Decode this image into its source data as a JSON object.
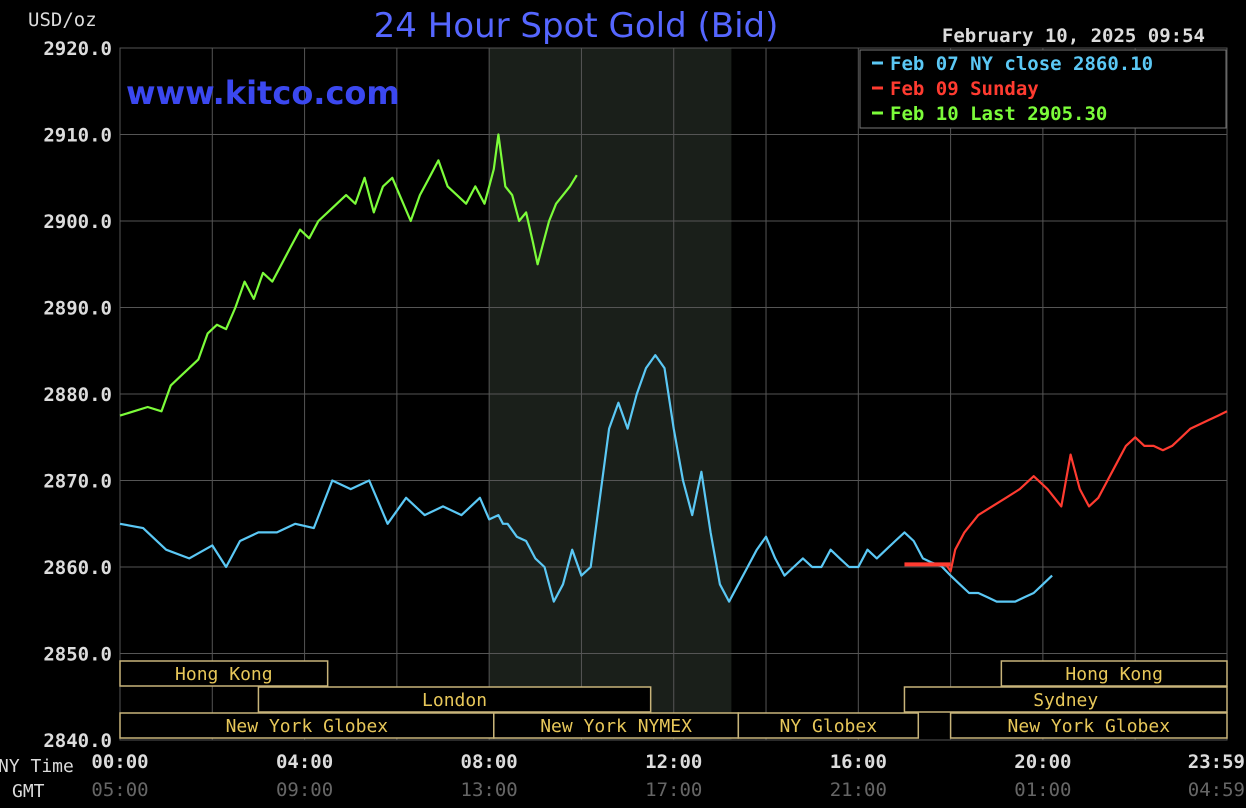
{
  "chart_data": {
    "type": "line",
    "title": "24 Hour Spot Gold (Bid)",
    "watermark": "www.kitco.com",
    "timestamp": "February 10, 2025 09:54",
    "unit_label": "USD/oz",
    "ylim": [
      2840,
      2920
    ],
    "y_ticks": [
      "2920.0",
      "2910.0",
      "2900.0",
      "2890.0",
      "2880.0",
      "2870.0",
      "2860.0",
      "2850.0",
      "2840.0"
    ],
    "x_ticks_ny": [
      "00:00",
      "04:00",
      "08:00",
      "12:00",
      "16:00",
      "20:00",
      "23:59"
    ],
    "x_ticks_gmt": [
      "05:00",
      "09:00",
      "13:00",
      "17:00",
      "21:00",
      "01:00",
      "04:59"
    ],
    "x_row_labels": {
      "ny": "NY Time",
      "gmt": "GMT"
    },
    "grid": true,
    "legend_position": "top-right",
    "series": [
      {
        "name": "Feb 07 NY close 2860.10",
        "color": "#5bc8f5",
        "x": [
          0.0,
          0.5,
          1.0,
          1.5,
          2.0,
          2.3,
          2.6,
          3.0,
          3.4,
          3.8,
          4.2,
          4.6,
          5.0,
          5.4,
          5.8,
          6.2,
          6.6,
          7.0,
          7.4,
          7.8,
          8.0,
          8.2,
          8.3,
          8.4,
          8.6,
          8.8,
          9.0,
          9.2,
          9.4,
          9.6,
          9.8,
          10.0,
          10.2,
          10.4,
          10.6,
          10.8,
          11.0,
          11.2,
          11.4,
          11.6,
          11.8,
          12.0,
          12.2,
          12.4,
          12.6,
          12.8,
          13.0,
          13.2,
          13.4,
          13.6,
          13.8,
          14.0,
          14.2,
          14.4,
          14.6,
          14.8,
          15.0,
          15.2,
          15.4,
          15.6,
          15.8,
          16.0,
          16.2,
          16.4,
          16.6,
          16.8,
          17.0,
          17.2,
          17.4,
          17.6,
          17.8,
          18.0,
          18.2,
          18.4,
          18.6,
          18.8,
          19.0,
          19.2,
          19.4,
          19.6,
          19.8,
          20.0,
          20.2
        ],
        "y": [
          2865,
          2864.5,
          2862,
          2861,
          2862.5,
          2860,
          2863,
          2864,
          2864,
          2865,
          2864.5,
          2870,
          2869,
          2870,
          2865,
          2868,
          2866,
          2867,
          2866,
          2868,
          2865.5,
          2866,
          2865,
          2865,
          2863.5,
          2863,
          2861,
          2860,
          2856,
          2858,
          2862,
          2859,
          2860,
          2868,
          2876,
          2879,
          2876,
          2880,
          2883,
          2884.5,
          2883,
          2876,
          2870,
          2866,
          2871,
          2864,
          2858,
          2856,
          2858,
          2860,
          2862,
          2863.5,
          2861,
          2859,
          2860,
          2861,
          2860,
          2860,
          2862,
          2861,
          2860,
          2860,
          2862,
          2861,
          2862,
          2863,
          2864,
          2863,
          2861,
          2860.5,
          2860.1,
          2859,
          2858,
          2857,
          2857,
          2856.5,
          2856,
          2856,
          2856,
          2856.5,
          2857,
          2858,
          2859
        ]
      },
      {
        "name": "Feb 09 Sunday",
        "color": "#ff3b30",
        "x": [
          17.0,
          17.3,
          17.6,
          17.9,
          18.0,
          18.1,
          18.3,
          18.6,
          18.9,
          19.2,
          19.5,
          19.8,
          20.1,
          20.4,
          20.6,
          20.8,
          21.0,
          21.2,
          21.4,
          21.6,
          21.8,
          22.0,
          22.2,
          22.4,
          22.6,
          22.8,
          23.0,
          23.2,
          23.4,
          23.6,
          23.8,
          23.99
        ],
        "y": [
          2860.3,
          2860.3,
          2860.3,
          2860.3,
          2859.5,
          2862,
          2864,
          2866,
          2867,
          2868,
          2869,
          2870.5,
          2869,
          2867,
          2873,
          2869,
          2867,
          2868,
          2870,
          2872,
          2874,
          2875,
          2874,
          2874,
          2873.5,
          2874,
          2875,
          2876,
          2876.5,
          2877,
          2877.5,
          2878
        ]
      },
      {
        "name": "Feb 10 Last 2905.30",
        "color": "#7cfc3a",
        "x": [
          0.0,
          0.3,
          0.6,
          0.9,
          1.1,
          1.3,
          1.5,
          1.7,
          1.9,
          2.1,
          2.3,
          2.5,
          2.7,
          2.9,
          3.1,
          3.3,
          3.5,
          3.7,
          3.9,
          4.1,
          4.3,
          4.5,
          4.7,
          4.9,
          5.1,
          5.3,
          5.5,
          5.7,
          5.9,
          6.1,
          6.3,
          6.5,
          6.7,
          6.9,
          7.1,
          7.3,
          7.5,
          7.7,
          7.9,
          8.0,
          8.1,
          8.2,
          8.35,
          8.5,
          8.65,
          8.8,
          8.95,
          9.05,
          9.15,
          9.3,
          9.45,
          9.6,
          9.75,
          9.9
        ],
        "y": [
          2877.5,
          2878,
          2878.5,
          2878,
          2881,
          2882,
          2883,
          2884,
          2887,
          2888,
          2887.5,
          2890,
          2893,
          2891,
          2894,
          2893,
          2895,
          2897,
          2899,
          2898,
          2900,
          2901,
          2902,
          2903,
          2902,
          2905,
          2901,
          2904,
          2905,
          2902.5,
          2900,
          2903,
          2905,
          2907,
          2904,
          2903,
          2902,
          2904,
          2902,
          2904,
          2906,
          2910,
          2904,
          2903,
          2900,
          2901,
          2897.5,
          2895,
          2897,
          2900,
          2902,
          2903,
          2904,
          2905.3
        ]
      }
    ],
    "bridge_segment": {
      "x": [
        17.0,
        18.0
      ],
      "y": [
        2860.3,
        2860.3
      ],
      "color": "#ff3b30"
    },
    "highlight_region": {
      "x": [
        8.0,
        13.25
      ]
    },
    "sessions": [
      {
        "label": "Hong Kong",
        "start": 0.0,
        "end": 4.5,
        "row": 0
      },
      {
        "label": "London",
        "start": 3.0,
        "end": 11.5,
        "row": 1
      },
      {
        "label": "New York Globex",
        "start": 0.0,
        "end": 8.1,
        "row": 2
      },
      {
        "label": "New York NYMEX",
        "start": 8.1,
        "end": 13.4,
        "row": 2
      },
      {
        "label": "NY Globex",
        "start": 13.4,
        "end": 17.3,
        "row": 2
      },
      {
        "label": "Hong Kong",
        "start": 19.1,
        "end": 23.99,
        "row": 0
      },
      {
        "label": "Sydney",
        "start": 17.0,
        "end": 23.99,
        "row": 1
      },
      {
        "label": "New York Globex",
        "start": 18.0,
        "end": 23.99,
        "row": 2
      }
    ]
  },
  "colors": {
    "background": "#000000",
    "grid": "#555555",
    "axis_text": "#dcdcdc",
    "title": "#5566ff",
    "session_text": "#e8c85a",
    "session_border": "#c8b47a",
    "highlight": "#1a1f1a"
  }
}
